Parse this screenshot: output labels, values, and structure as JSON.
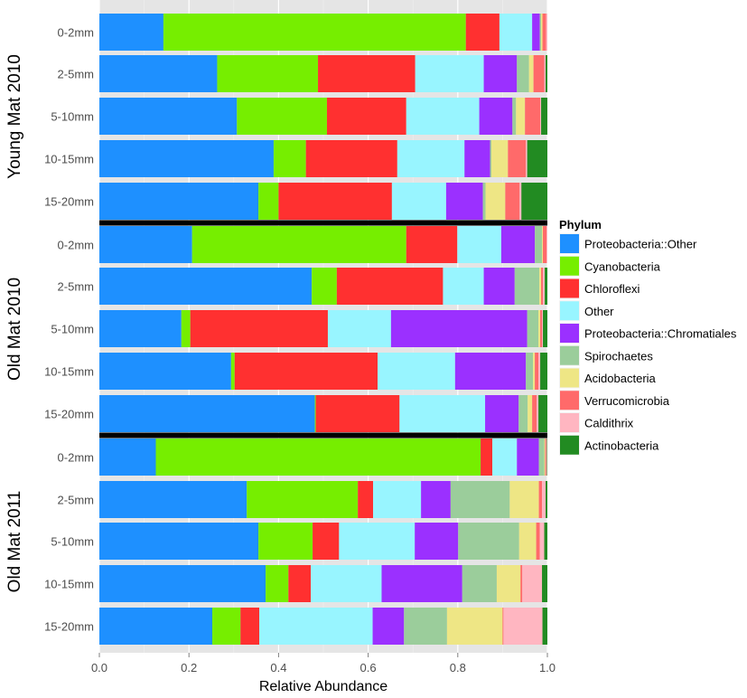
{
  "chart_data": {
    "type": "bar",
    "orientation": "horizontal",
    "stacked": true,
    "xlabel": "Relative Abundance",
    "xlim": [
      0,
      1
    ],
    "xticks": [
      0,
      0.2,
      0.4,
      0.6,
      0.8,
      1
    ],
    "xtick_labels": [
      "0.0",
      "0.2",
      "0.4",
      "0.6",
      "0.8",
      "1.0"
    ],
    "legend": {
      "title": "Phylum",
      "placement": "right"
    },
    "phyla": [
      {
        "name": "Proteobacteria::Other",
        "color": "#1e90ff"
      },
      {
        "name": "Cyanobacteria",
        "color": "#76ee00"
      },
      {
        "name": "Chloroflexi",
        "color": "#ff3030"
      },
      {
        "name": "Other",
        "color": "#98f5ff"
      },
      {
        "name": "Proteobacteria::Chromatiales",
        "color": "#9b30ff"
      },
      {
        "name": "Spirochaetes",
        "color": "#9bcd9b"
      },
      {
        "name": "Acidobacteria",
        "color": "#eee685"
      },
      {
        "name": "Verrucomicrobia",
        "color": "#ff6a6a"
      },
      {
        "name": "Caldithrix",
        "color": "#ffb6c1"
      },
      {
        "name": "Actinobacteria",
        "color": "#228b22"
      }
    ],
    "groups": [
      {
        "label": "Young Mat 2010",
        "samples": [
          {
            "label": "0-2mm",
            "values": [
              0.143,
              0.675,
              0.075,
              0.073,
              0.017,
              0.003,
              0.003,
              0.008,
              0.003,
              0.0
            ]
          },
          {
            "label": "2-5mm",
            "values": [
              0.263,
              0.225,
              0.217,
              0.153,
              0.074,
              0.027,
              0.01,
              0.024,
              0.003,
              0.004
            ]
          },
          {
            "label": "5-10mm",
            "values": [
              0.307,
              0.201,
              0.177,
              0.163,
              0.074,
              0.008,
              0.02,
              0.034,
              0.002,
              0.014
            ]
          },
          {
            "label": "10-15mm",
            "values": [
              0.389,
              0.072,
              0.204,
              0.15,
              0.057,
              0.003,
              0.037,
              0.04,
              0.003,
              0.045
            ]
          },
          {
            "label": "15-20mm",
            "values": [
              0.355,
              0.045,
              0.253,
              0.121,
              0.082,
              0.006,
              0.044,
              0.032,
              0.004,
              0.058
            ]
          }
        ]
      },
      {
        "label": "Old Mat 2010",
        "samples": [
          {
            "label": "0-2mm",
            "values": [
              0.207,
              0.478,
              0.114,
              0.098,
              0.075,
              0.016,
              0.002,
              0.008,
              0.002,
              0.0
            ]
          },
          {
            "label": "2-5mm",
            "values": [
              0.474,
              0.056,
              0.237,
              0.091,
              0.069,
              0.055,
              0.004,
              0.004,
              0.004,
              0.006
            ]
          },
          {
            "label": "5-10mm",
            "values": [
              0.183,
              0.02,
              0.307,
              0.141,
              0.304,
              0.025,
              0.004,
              0.004,
              0.002,
              0.01
            ]
          },
          {
            "label": "10-15mm",
            "values": [
              0.294,
              0.008,
              0.319,
              0.173,
              0.158,
              0.016,
              0.004,
              0.008,
              0.004,
              0.016
            ]
          },
          {
            "label": "15-20mm",
            "values": [
              0.481,
              0.002,
              0.187,
              0.191,
              0.075,
              0.02,
              0.01,
              0.01,
              0.004,
              0.02
            ]
          }
        ]
      },
      {
        "label": "Old Mat 2011",
        "samples": [
          {
            "label": "0-2mm",
            "values": [
              0.126,
              0.725,
              0.026,
              0.055,
              0.049,
              0.012,
              0.002,
              0.002,
              0.002,
              0.001
            ]
          },
          {
            "label": "2-5mm",
            "values": [
              0.329,
              0.248,
              0.034,
              0.107,
              0.066,
              0.132,
              0.065,
              0.007,
              0.008,
              0.004
            ]
          },
          {
            "label": "5-10mm",
            "values": [
              0.355,
              0.121,
              0.059,
              0.169,
              0.097,
              0.136,
              0.038,
              0.008,
              0.01,
              0.007
            ]
          },
          {
            "label": "10-15mm",
            "values": [
              0.371,
              0.051,
              0.05,
              0.158,
              0.18,
              0.077,
              0.053,
              0.004,
              0.044,
              0.012
            ]
          },
          {
            "label": "15-20mm",
            "values": [
              0.252,
              0.063,
              0.042,
              0.253,
              0.07,
              0.096,
              0.124,
              0.002,
              0.087,
              0.011
            ]
          }
        ]
      }
    ]
  }
}
